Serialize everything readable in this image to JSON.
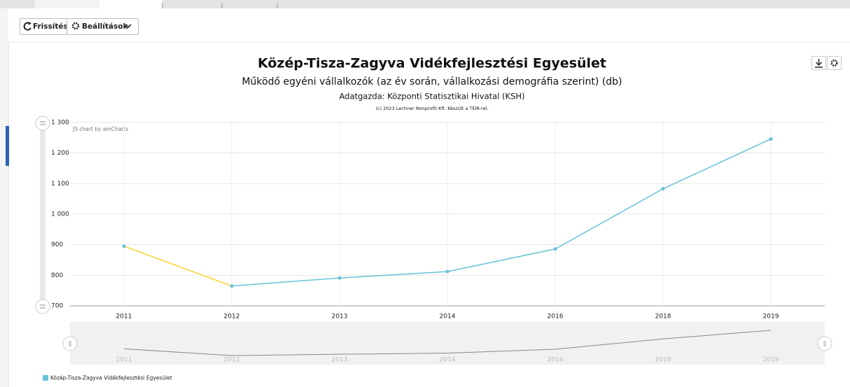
{
  "toolbar": {
    "refresh": "Frissítés",
    "settings": "Beállítások"
  },
  "chart_data": {
    "type": "line",
    "title": "Közép-Tisza-Zagyva Vidékfejlesztési Egyesület",
    "subtitle": "Működő egyéni vállalkozók (az év során, vállalkozási demográfia szerint) (db)",
    "source": "Adatgazda: Központi Statisztikai Hivatal (KSH)",
    "copyright": "(c) 2023 Lechner Nonprofit Kft. Készült a TEIR-rel.",
    "credit": "JS chart by amCharts",
    "categories": [
      "2011",
      "2012",
      "2013",
      "2014",
      "2016",
      "2018",
      "2019"
    ],
    "series": [
      {
        "name": "Közép-Tisza-Zagyva Vidékfejlesztési Egyesület",
        "color": "#67c1d6",
        "values": [
          895,
          765,
          791,
          812,
          886,
          1083,
          1246
        ]
      }
    ],
    "first_segment_color": "#f5d52a",
    "ylim": [
      700,
      1300
    ],
    "yticks": [
      700,
      800,
      900,
      {
        "value": 1000,
        "label": "1 000"
      },
      {
        "value": 1100,
        "label": "1 100"
      },
      {
        "value": 1200,
        "label": "1 200"
      },
      {
        "value": 1300,
        "label": "1 300"
      }
    ],
    "grid": true
  }
}
